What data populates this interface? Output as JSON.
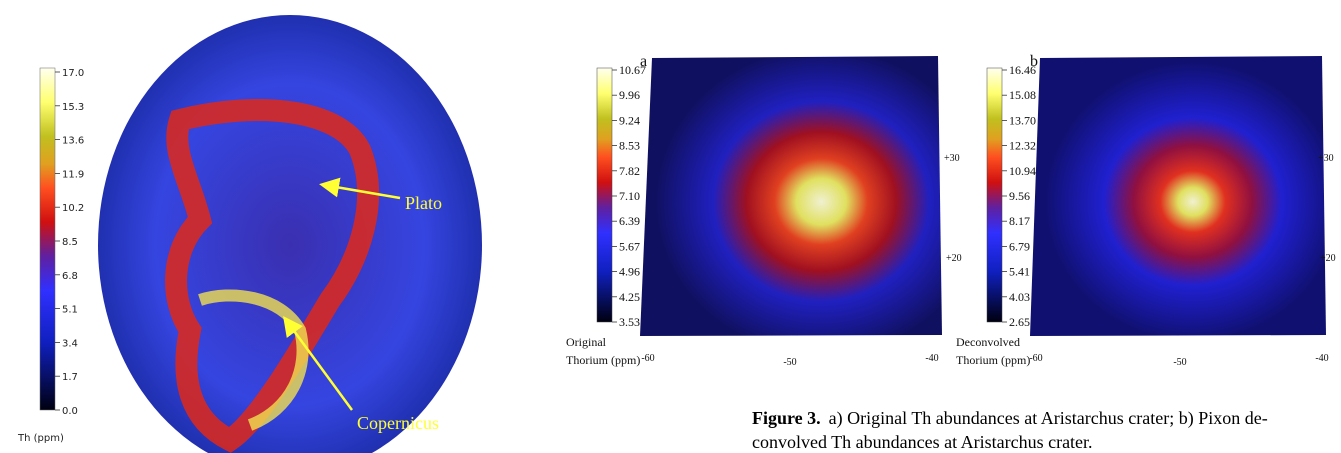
{
  "left_map": {
    "colorbar_ticks": [
      "17.0",
      "15.3",
      "13.6",
      "11.9",
      "10.2",
      "8.5",
      "6.8",
      "5.1",
      "3.4",
      "1.7",
      "0.0"
    ],
    "colorbar_label": "Th (ppm)",
    "annotations": [
      "Plato",
      "Copernicus"
    ]
  },
  "panel_a": {
    "letter": "a",
    "colorbar_ticks": [
      "10.67",
      "9.96",
      "9.24",
      "8.53",
      "7.82",
      "7.10",
      "6.39",
      "5.67",
      "4.96",
      "4.25",
      "3.53"
    ],
    "colorbar_label": [
      "Original",
      "Thorium (ppm)"
    ],
    "x_ticks": [
      "-60",
      "-50",
      "-40"
    ],
    "y_ticks": [
      "+30",
      "+20"
    ]
  },
  "panel_b": {
    "letter": "b",
    "colorbar_ticks": [
      "16.46",
      "15.08",
      "13.70",
      "12.32",
      "10.94",
      "9.56",
      "8.17",
      "6.79",
      "5.41",
      "4.03",
      "2.65"
    ],
    "colorbar_label": [
      "Deconvolved",
      "Thorium (ppm)"
    ],
    "x_ticks": [
      "-60",
      "-50",
      "-40"
    ],
    "y_ticks": [
      "+30",
      "+20"
    ]
  },
  "caption": {
    "label": "Figure 3.",
    "lines": [
      "a) Original Th abundances at Aristarchus crater; b) Pixon de-",
      "convolved Th abundances at Aristarchus crater."
    ]
  }
}
